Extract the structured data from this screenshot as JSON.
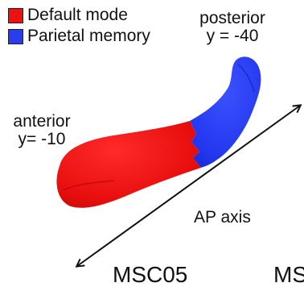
{
  "legend": {
    "items": [
      {
        "label": "Default mode",
        "color": "#ee1111"
      },
      {
        "label": "Parietal memory",
        "color": "#2a3cf0"
      }
    ]
  },
  "labels": {
    "posterior_name": "posterior",
    "posterior_coord": "y = -40",
    "anterior_name": "anterior",
    "anterior_coord": "y= -10",
    "axis": "AP axis",
    "bottom_left_cut": "MSC05",
    "bottom_right_cut": "MS"
  }
}
